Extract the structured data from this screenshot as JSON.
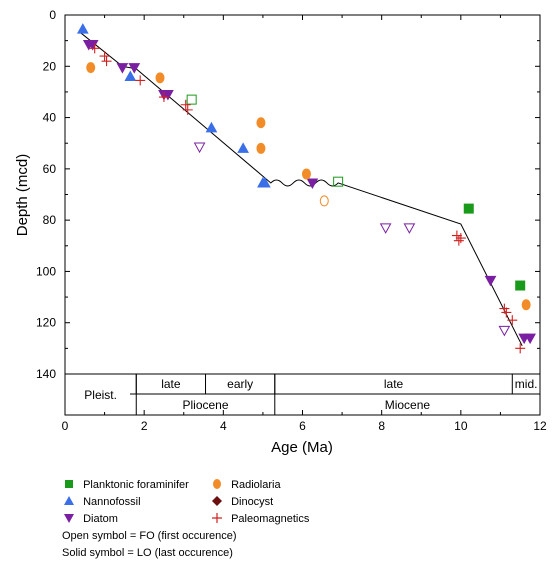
{
  "chart_data": {
    "type": "scatter",
    "title": "",
    "xlabel": "Age (Ma)",
    "ylabel": "Depth (mcd)",
    "xlim": [
      0,
      12
    ],
    "ylim": [
      140,
      0
    ],
    "y_inverted": true,
    "xticks": [
      "0",
      "2",
      "4",
      "6",
      "8",
      "10",
      "12"
    ],
    "yticks": [
      "0",
      "20",
      "40",
      "60",
      "80",
      "100",
      "120",
      "140"
    ],
    "grid": false,
    "legend_position": "below",
    "series": [
      {
        "name": "Planktonic foraminifer",
        "marker": "square",
        "color": "#1a9a1a",
        "points": [
          {
            "x": 10.2,
            "y": 75.5,
            "type": "LO"
          },
          {
            "x": 11.5,
            "y": 105.5,
            "type": "LO"
          },
          {
            "x": 3.2,
            "y": 33,
            "type": "FO"
          },
          {
            "x": 6.9,
            "y": 65,
            "type": "FO"
          }
        ]
      },
      {
        "name": "Nannofossil",
        "marker": "triangle-up",
        "color": "#3b6fe8",
        "points": [
          {
            "x": 0.45,
            "y": 5.5,
            "type": "LO"
          },
          {
            "x": 1.65,
            "y": 24,
            "type": "LO"
          },
          {
            "x": 3.7,
            "y": 44,
            "type": "LO"
          },
          {
            "x": 4.5,
            "y": 52,
            "type": "LO"
          },
          {
            "x": 5.0,
            "y": 65.5,
            "type": "LO"
          },
          {
            "x": 5.05,
            "y": 65.5,
            "type": "LO"
          }
        ]
      },
      {
        "name": "Diatom",
        "marker": "triangle-down",
        "color": "#7a1fa2",
        "points": [
          {
            "x": 0.6,
            "y": 11.5,
            "type": "LO"
          },
          {
            "x": 0.7,
            "y": 11.5,
            "type": "LO"
          },
          {
            "x": 1.45,
            "y": 20.5,
            "type": "LO"
          },
          {
            "x": 1.75,
            "y": 20.5,
            "type": "LO"
          },
          {
            "x": 2.5,
            "y": 31,
            "type": "LO"
          },
          {
            "x": 2.6,
            "y": 31,
            "type": "LO"
          },
          {
            "x": 6.25,
            "y": 65.5,
            "type": "LO"
          },
          {
            "x": 10.75,
            "y": 103.5,
            "type": "LO"
          },
          {
            "x": 11.6,
            "y": 126,
            "type": "LO"
          },
          {
            "x": 11.75,
            "y": 126,
            "type": "LO"
          },
          {
            "x": 3.4,
            "y": 51.5,
            "type": "FO"
          },
          {
            "x": 8.1,
            "y": 83,
            "type": "FO"
          },
          {
            "x": 8.7,
            "y": 83,
            "type": "FO"
          },
          {
            "x": 11.1,
            "y": 123,
            "type": "FO"
          }
        ]
      },
      {
        "name": "Radiolaria",
        "marker": "circle",
        "color": "#f28c28",
        "points": [
          {
            "x": 0.65,
            "y": 20.5,
            "type": "LO"
          },
          {
            "x": 2.4,
            "y": 24.5,
            "type": "LO"
          },
          {
            "x": 4.95,
            "y": 42,
            "type": "LO"
          },
          {
            "x": 4.95,
            "y": 52,
            "type": "LO"
          },
          {
            "x": 6.1,
            "y": 62,
            "type": "LO"
          },
          {
            "x": 11.65,
            "y": 113,
            "type": "LO"
          },
          {
            "x": 6.55,
            "y": 72.5,
            "type": "FO"
          }
        ]
      },
      {
        "name": "Dinocyst",
        "marker": "diamond",
        "color": "#6b0f0f",
        "points": []
      },
      {
        "name": "Paleomagnetics",
        "marker": "plus",
        "color": "#d02020",
        "points": [
          {
            "x": 0.75,
            "y": 13,
            "type": "LO"
          },
          {
            "x": 1.0,
            "y": 16,
            "type": "LO"
          },
          {
            "x": 1.05,
            "y": 18,
            "type": "LO"
          },
          {
            "x": 1.9,
            "y": 25.5,
            "type": "LO"
          },
          {
            "x": 2.5,
            "y": 32,
            "type": "LO"
          },
          {
            "x": 3.05,
            "y": 35,
            "type": "LO"
          },
          {
            "x": 3.1,
            "y": 37,
            "type": "LO"
          },
          {
            "x": 9.9,
            "y": 86,
            "type": "LO"
          },
          {
            "x": 9.95,
            "y": 88,
            "type": "LO"
          },
          {
            "x": 10.0,
            "y": 87,
            "type": "LO"
          },
          {
            "x": 11.1,
            "y": 114.5,
            "type": "LO"
          },
          {
            "x": 11.15,
            "y": 116,
            "type": "LO"
          },
          {
            "x": 11.3,
            "y": 119,
            "type": "LO"
          },
          {
            "x": 11.5,
            "y": 130,
            "type": "LO"
          }
        ]
      }
    ],
    "age_depth_line": [
      {
        "x": 0.4,
        "y": 7
      },
      {
        "x": 1.45,
        "y": 20
      },
      {
        "x": 1.8,
        "y": 21
      },
      {
        "x": 5.2,
        "y": 65.5
      },
      {
        "x": 6.9,
        "y": 65.5
      },
      {
        "x": 10.0,
        "y": 81.5
      },
      {
        "x": 11.55,
        "y": 129
      }
    ],
    "hiatus": {
      "x_start": 5.2,
      "x_end": 6.9,
      "y": 65.5
    },
    "timescale": {
      "epochs": [
        {
          "label": "Pleist.",
          "start": 0,
          "end": 1.8
        },
        {
          "label": "Pliocene",
          "start": 1.8,
          "end": 5.3
        },
        {
          "label": "Miocene",
          "start": 5.3,
          "end": 12
        }
      ],
      "stages": [
        {
          "label": "late",
          "start": 1.8,
          "end": 3.55
        },
        {
          "label": "early",
          "start": 3.55,
          "end": 5.3
        },
        {
          "label": "late",
          "start": 5.3,
          "end": 11.3
        },
        {
          "label": "mid.",
          "start": 11.3,
          "end": 12
        }
      ]
    }
  },
  "legend": {
    "items": [
      {
        "label": "Planktonic foraminifer",
        "marker": "square",
        "color": "#1a9a1a"
      },
      {
        "label": "Radiolaria",
        "marker": "circle",
        "color": "#f28c28"
      },
      {
        "label": "Nannofossil",
        "marker": "triangle-up",
        "color": "#3b6fe8"
      },
      {
        "label": "Dinocyst",
        "marker": "diamond",
        "color": "#6b0f0f"
      },
      {
        "label": "Diatom",
        "marker": "triangle-down",
        "color": "#7a1fa2"
      },
      {
        "label": "Paleomagnetics",
        "marker": "plus",
        "color": "#d02020"
      }
    ],
    "note_open": "Open symbol = FO (first occurence)",
    "note_solid": "Solid symbol = LO (last occurence)"
  }
}
